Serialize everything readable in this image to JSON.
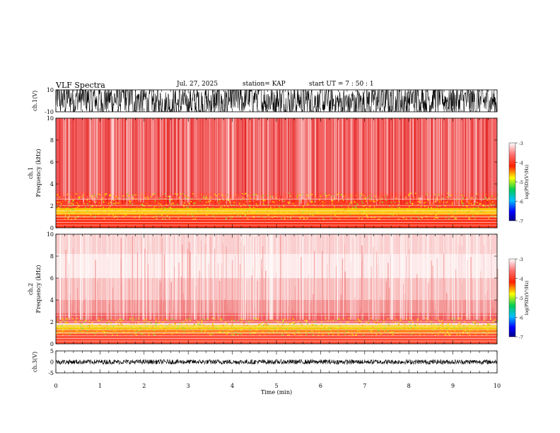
{
  "header": {
    "title": "VLF Spectra",
    "date": "Jul. 27, 2025",
    "station": "station= KAP",
    "start": "start  UT =   7 : 50 : 1"
  },
  "chart_data": [
    {
      "type": "line",
      "name": "ch1-waveform",
      "ylabel": "ch.1(V)",
      "ylim": [
        -10,
        10
      ],
      "yticks": [
        "10",
        "-10"
      ],
      "xlim": [
        0,
        10
      ]
    },
    {
      "type": "heatmap",
      "name": "ch1-spectrogram",
      "ylabel": "ch.1",
      "ylabel2": "Frequency (kHz)",
      "ylim": [
        0,
        10
      ],
      "yticks": [
        "0",
        "2",
        "4",
        "6",
        "8",
        "10"
      ],
      "xlim": [
        0,
        10
      ],
      "colorbar": {
        "label": "log(PSD)(V²/Hz)",
        "range": [
          -7,
          -3
        ],
        "ticks": [
          "-3",
          "-4",
          "-5",
          "-6",
          "-7"
        ]
      }
    },
    {
      "type": "heatmap",
      "name": "ch2-spectrogram",
      "ylabel": "ch.2",
      "ylabel2": "Frequency (kHz)",
      "ylim": [
        0,
        10
      ],
      "yticks": [
        "0",
        "2",
        "4",
        "6",
        "8",
        "10"
      ],
      "xlim": [
        0,
        10
      ],
      "colorbar": {
        "label": "log(PSD)(V²/Hz)",
        "range": [
          -7,
          -3
        ],
        "ticks": [
          "-3",
          "-4",
          "-5",
          "-6",
          "-7"
        ]
      }
    },
    {
      "type": "line",
      "name": "ch3-waveform",
      "ylabel": "ch.3(V)",
      "ylim": [
        -5,
        5
      ],
      "yticks": [
        "5",
        "0",
        "-5"
      ],
      "xlim": [
        0,
        10
      ],
      "xlabel": "Time (min)",
      "xticks": [
        "0",
        "1",
        "2",
        "3",
        "4",
        "5",
        "6",
        "7",
        "8",
        "9",
        "10"
      ]
    }
  ]
}
